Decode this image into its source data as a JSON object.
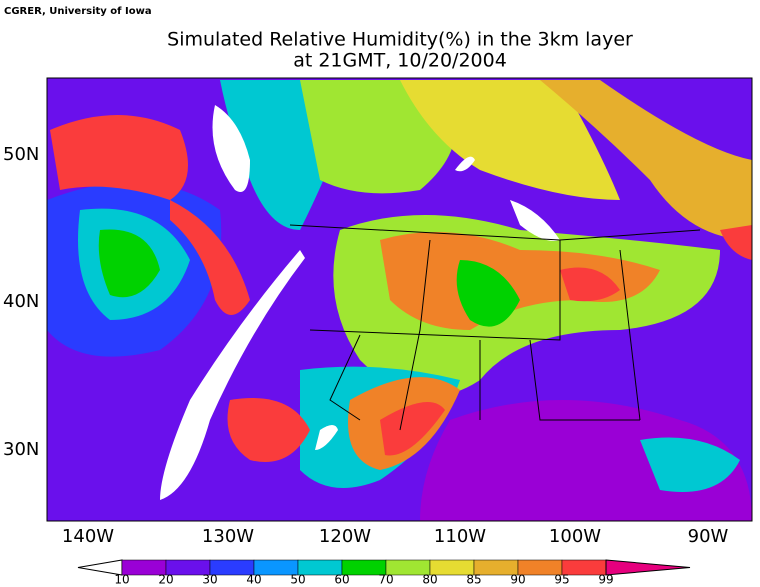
{
  "credit": "CGRER, University of Iowa",
  "title": "Simulated Relative Humidity(%) in the 3km layer",
  "subtitle": "at 21GMT, 10/20/2004",
  "lat_labels": [
    "50N",
    "40N",
    "30N"
  ],
  "lon_labels": [
    "140W",
    "130W",
    "120W",
    "110W",
    "100W",
    "90W"
  ],
  "colorbar": {
    "levels": [
      10,
      20,
      30,
      40,
      50,
      60,
      70,
      80,
      85,
      90,
      95,
      99
    ],
    "colors": [
      "#9a00d6",
      "#6a10ec",
      "#2a3cff",
      "#0a96ff",
      "#00c8d2",
      "#00d200",
      "#a0e632",
      "#e6dc32",
      "#e6af2d",
      "#f08228",
      "#fa3c3c"
    ],
    "under_color": "#ffffff",
    "over_color": "#e6007e"
  }
}
